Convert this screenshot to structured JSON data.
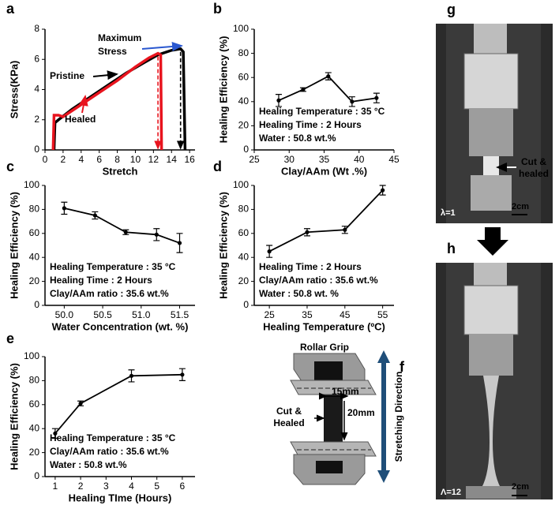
{
  "chart_data": [
    {
      "type": "line",
      "label": "a",
      "xlabel": "Stretch",
      "ylabel": "Stress(KPa)",
      "xlim": [
        0,
        16.6
      ],
      "ylim": [
        0,
        8
      ],
      "xticks": [
        0,
        2,
        4,
        6,
        8,
        10,
        12,
        14,
        16
      ],
      "yticks": [
        0,
        2,
        4,
        6,
        8
      ],
      "series": [
        {
          "name": "Pristine",
          "color": "#000000",
          "x": [
            1.0,
            1.1,
            1.5,
            3,
            5,
            7,
            9,
            11,
            12.5,
            14,
            15,
            15.3,
            15.5
          ],
          "values": [
            0,
            1.8,
            2.0,
            2.7,
            3.5,
            4.3,
            5.1,
            5.8,
            6.3,
            6.6,
            6.7,
            6.5,
            0
          ]
        },
        {
          "name": "Healed",
          "color": "#e8141e",
          "x": [
            0.9,
            1.0,
            1.5,
            2,
            4,
            6,
            8,
            10,
            11.5,
            12.5,
            12.8,
            12.9
          ],
          "values": [
            0,
            2.3,
            2.3,
            2.2,
            3.0,
            3.8,
            4.6,
            5.5,
            6.1,
            6.4,
            6.3,
            0
          ]
        }
      ],
      "annotations": [
        "Maximum",
        "Stress",
        "Pristine",
        "Healed"
      ]
    },
    {
      "type": "errorbar",
      "label": "b",
      "xlabel": "Clay/AAm (Wt .%)",
      "ylabel": "Healing Efficiency (%)",
      "xlim": [
        25,
        45
      ],
      "ylim": [
        0,
        100
      ],
      "xticks": [
        25,
        30,
        35,
        40,
        45
      ],
      "yticks": [
        0,
        20,
        40,
        60,
        80,
        100
      ],
      "x": [
        28.5,
        32,
        35.6,
        39,
        42.5
      ],
      "series": [
        {
          "color": "#000000",
          "values": [
            41,
            50,
            61,
            40,
            43
          ],
          "errors": [
            5,
            1.5,
            3,
            4,
            4
          ]
        }
      ],
      "annotations": [
        "Healing Temperature : 35 °C",
        "Healing Time : 2 Hours",
        "Water : 50.8 wt.%"
      ]
    },
    {
      "type": "errorbar",
      "label": "c",
      "xlabel": "Water Concentration (wt. %)",
      "ylabel": "Healing Efficiency (%)",
      "xlim": [
        49.75,
        51.7
      ],
      "ylim": [
        0,
        100
      ],
      "xticks": [
        {
          "value": 50,
          "label": "50.0"
        },
        50.5,
        {
          "value": 51,
          "label": "51.0"
        },
        51.5
      ],
      "yticks": [
        0,
        20,
        40,
        60,
        80,
        100
      ],
      "x": [
        50.0,
        50.4,
        50.8,
        51.2,
        51.5
      ],
      "series": [
        {
          "color": "#000000",
          "values": [
            81,
            75,
            61,
            59,
            52
          ],
          "errors": [
            5,
            3,
            2,
            5,
            8
          ]
        }
      ],
      "annotations": [
        "Healing Temperature : 35 °C",
        "Healing Time : 2 Hours",
        "Clay/AAm ratio : 35.6 wt.%"
      ]
    },
    {
      "type": "errorbar",
      "label": "d",
      "xlabel": "Healing Temperature (ºC)",
      "ylabel": "Healing Efficiency (%)",
      "xlim": [
        21,
        58
      ],
      "ylim": [
        0,
        100
      ],
      "xticks": [
        25,
        35,
        45,
        55
      ],
      "yticks": [
        0,
        20,
        40,
        60,
        80,
        100
      ],
      "x": [
        25,
        35,
        45,
        55
      ],
      "series": [
        {
          "color": "#000000",
          "values": [
            45,
            61,
            63,
            96
          ],
          "errors": [
            5,
            3,
            3,
            4
          ]
        }
      ],
      "annotations": [
        "Healing Time : 2 Hours",
        "Clay/AAm ratio : 35.6 wt.%",
        "Water : 50.8 wt. %"
      ]
    },
    {
      "type": "errorbar",
      "label": "e",
      "xlabel": "Healing TIme (Hours)",
      "ylabel": "Healing Efficiency (%)",
      "xlim": [
        0.6,
        6.5
      ],
      "ylim": [
        0,
        100
      ],
      "xticks": [
        1,
        2,
        3,
        4,
        5,
        6
      ],
      "yticks": [
        0,
        20,
        40,
        60,
        80,
        100
      ],
      "x": [
        1,
        2,
        4,
        6
      ],
      "series": [
        {
          "color": "#000000",
          "values": [
            36,
            61,
            84,
            85
          ],
          "errors": [
            4,
            2,
            5,
            5
          ]
        }
      ],
      "annotations": [
        "Healing Temperature : 35 °C",
        "Clay/AAm ratio : 35.6 wt.%",
        "Water : 50.8 wt.%"
      ]
    }
  ],
  "diagram": {
    "label": "f",
    "grip": "Rollar Grip",
    "width": "15mm",
    "length": "20mm",
    "cut": [
      "Cut &",
      "Healed"
    ],
    "direction": "Stretching Direction"
  },
  "photos": [
    {
      "label": "g",
      "note": [
        "Cut &",
        "healed"
      ],
      "stretch": "λ=1",
      "scale": "2cm"
    },
    {
      "label": "h",
      "stretch": "Λ=12",
      "scale": "2cm"
    }
  ]
}
